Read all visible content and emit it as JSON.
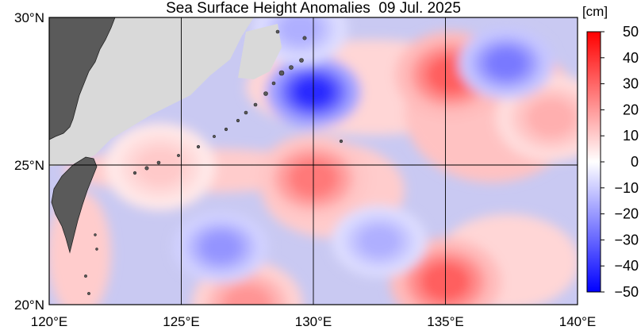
{
  "title": "Sea Surface Height Anomalies  09 Jul. 2025",
  "colorbar": {
    "unit": "[cm]",
    "ticks": [
      "50",
      "40",
      "30",
      "20",
      "10",
      "0",
      "−10",
      "−20",
      "−30",
      "−40",
      "−50"
    ],
    "colors": {
      "max": "#ff0000",
      "min": "#0000ff",
      "zero": "#ffffff",
      "land": "#5a5a5a",
      "no_data": "#d9d9d9"
    }
  },
  "axes": {
    "x_ticks": [
      "120°E",
      "125°E",
      "130°E",
      "135°E",
      "140°E"
    ],
    "y_ticks": [
      "30°N",
      "25°N",
      "20°N"
    ]
  },
  "chart_data": {
    "type": "heatmap",
    "title": "Sea Surface Height Anomalies  09 Jul. 2025",
    "unit": "cm",
    "xlim": [
      120,
      140
    ],
    "ylim": [
      20,
      30
    ],
    "clim": [
      -50,
      50
    ],
    "grid": true,
    "features": [
      {
        "name": "warm anomaly",
        "lon": 130.0,
        "lat": 24.4,
        "value": 25
      },
      {
        "name": "warm anomaly",
        "lon": 135.2,
        "lat": 28.0,
        "value": 30
      },
      {
        "name": "warm anomaly",
        "lon": 135.0,
        "lat": 20.8,
        "value": 30
      },
      {
        "name": "warm anomaly",
        "lon": 124.2,
        "lat": 24.8,
        "value": 10
      },
      {
        "name": "warm anomaly",
        "lon": 127.5,
        "lat": 20.0,
        "value": 20
      },
      {
        "name": "warm anomaly",
        "lon": 139.0,
        "lat": 26.5,
        "value": 15
      },
      {
        "name": "cold anomaly",
        "lon": 130.0,
        "lat": 27.4,
        "value": -40
      },
      {
        "name": "cold anomaly",
        "lon": 137.3,
        "lat": 28.4,
        "value": -25
      },
      {
        "name": "cold anomaly",
        "lon": 126.5,
        "lat": 22.0,
        "value": -20
      },
      {
        "name": "cold anomaly",
        "lon": 132.5,
        "lat": 22.2,
        "value": -15
      },
      {
        "name": "cold anomaly",
        "lon": 129.5,
        "lat": 29.6,
        "value": -15
      }
    ]
  }
}
